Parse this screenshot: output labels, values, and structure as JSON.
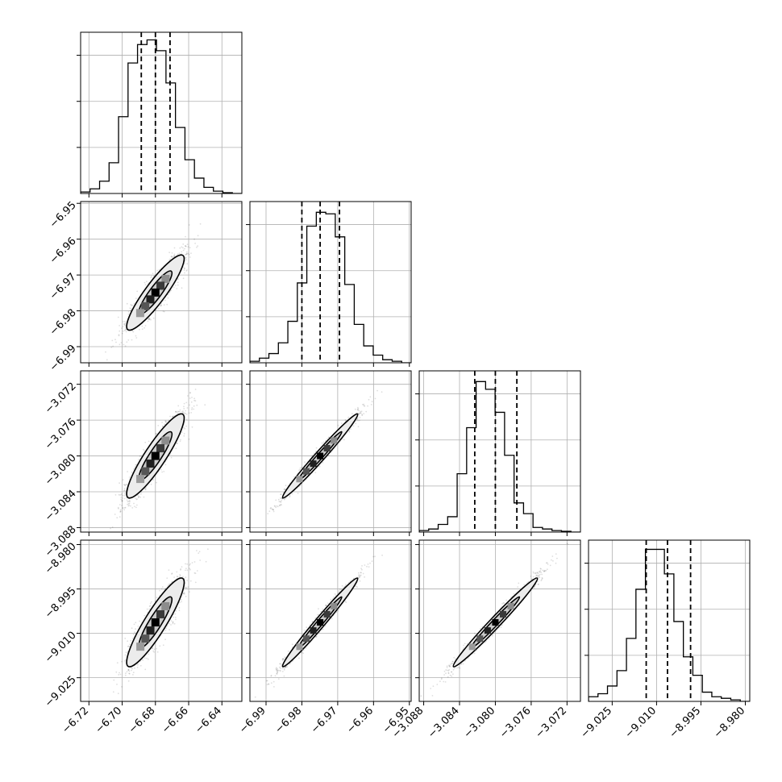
{
  "chart_data": {
    "type": "scatter",
    "title": "",
    "parameters": [
      {
        "xlabel": "",
        "range": [
          -6.725,
          -6.628
        ],
        "ticks": [
          -6.72,
          -6.7,
          -6.68,
          -6.66,
          -6.64
        ],
        "tick_labels": [
          "−6.72",
          "−6.70",
          "−6.68",
          "−6.66",
          "−6.64"
        ],
        "quantiles": [
          -6.6885,
          -6.68,
          -6.6712
        ],
        "histogram": [
          1,
          3,
          8,
          20,
          50,
          85,
          97,
          100,
          93,
          72,
          43,
          22,
          10,
          4,
          1.5,
          0.5,
          0
        ]
      },
      {
        "xlabel": "",
        "range": [
          -6.9945,
          -6.9495
        ],
        "ticks": [
          -6.99,
          -6.98,
          -6.97,
          -6.96,
          -6.95
        ],
        "tick_labels": [
          "−6.99",
          "−6.98",
          "−6.97",
          "−6.96",
          "−6.95"
        ],
        "quantiles": [
          -6.98,
          -6.9749,
          -6.9695
        ],
        "histogram": [
          1,
          3,
          6,
          13,
          27,
          52,
          89,
          98,
          97,
          82,
          51,
          25,
          11,
          5,
          2,
          1,
          0
        ]
      },
      {
        "xlabel": "",
        "range": [
          -3.0885,
          -3.0705
        ],
        "ticks": [
          -3.088,
          -3.084,
          -3.08,
          -3.076,
          -3.072
        ],
        "tick_labels": [
          "−3.088",
          "−3.084",
          "−3.080",
          "−3.076",
          "−3.072"
        ],
        "quantiles": [
          -3.0823,
          -3.08,
          -3.0776
        ],
        "histogram": [
          1,
          2,
          5,
          10,
          38,
          68,
          98,
          93,
          78,
          50,
          19,
          12,
          3,
          2,
          1,
          0.5,
          0
        ]
      },
      {
        "xlabel": "",
        "range": [
          -9.033,
          -8.9785
        ],
        "ticks": [
          -9.025,
          -9.01,
          -8.995,
          -8.98
        ],
        "tick_labels": [
          "−9.025",
          "−9.010",
          "−8.995",
          "−8.980"
        ],
        "quantiles": [
          -9.0135,
          -9.0063,
          -8.9985
        ],
        "histogram": [
          3,
          5,
          10,
          20,
          41,
          73,
          99,
          99,
          83,
          52,
          29,
          17,
          6,
          3,
          2,
          1,
          0
        ]
      }
    ],
    "hist_ylim": [
      0,
      105
    ],
    "hist_yticks": [
      30,
      60,
      90
    ],
    "grid": true,
    "legend": "none"
  }
}
